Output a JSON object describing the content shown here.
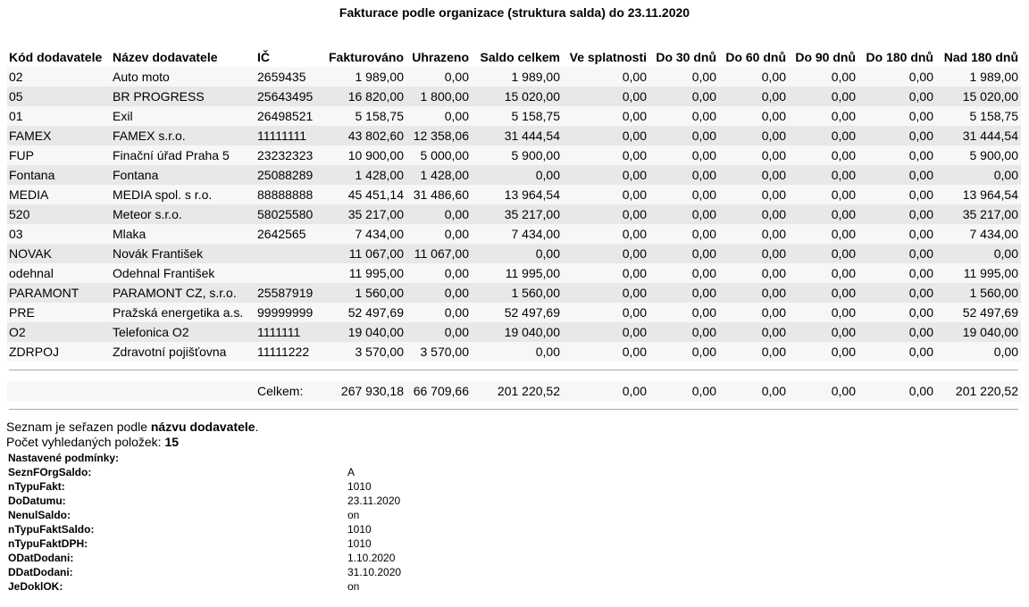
{
  "title": "Fakturace podle organizace (struktura salda) do 23.11.2020",
  "columns": [
    "Kód dodavatele",
    "Název dodavatele",
    "IČ",
    "Fakturováno",
    "Uhrazeno",
    "Saldo celkem",
    "Ve splatnosti",
    "Do 30 dnů",
    "Do 60 dnů",
    "Do 90 dnů",
    "Do 180 dnů",
    "Nad 180 dnů"
  ],
  "rows": [
    [
      "02",
      "Auto moto",
      "2659435",
      "1 989,00",
      "0,00",
      "1 989,00",
      "0,00",
      "0,00",
      "0,00",
      "0,00",
      "0,00",
      "1 989,00"
    ],
    [
      "05",
      "BR PROGRESS",
      "25643495",
      "16 820,00",
      "1 800,00",
      "15 020,00",
      "0,00",
      "0,00",
      "0,00",
      "0,00",
      "0,00",
      "15 020,00"
    ],
    [
      "01",
      "Exil",
      "26498521",
      "5 158,75",
      "0,00",
      "5 158,75",
      "0,00",
      "0,00",
      "0,00",
      "0,00",
      "0,00",
      "5 158,75"
    ],
    [
      "FAMEX",
      "FAMEX s.r.o.",
      "11111111",
      "43 802,60",
      "12 358,06",
      "31 444,54",
      "0,00",
      "0,00",
      "0,00",
      "0,00",
      "0,00",
      "31 444,54"
    ],
    [
      "FUP",
      "Finační úřad Praha 5",
      "23232323",
      "10 900,00",
      "5 000,00",
      "5 900,00",
      "0,00",
      "0,00",
      "0,00",
      "0,00",
      "0,00",
      "5 900,00"
    ],
    [
      "Fontana",
      "Fontana",
      "25088289",
      "1 428,00",
      "1 428,00",
      "0,00",
      "0,00",
      "0,00",
      "0,00",
      "0,00",
      "0,00",
      "0,00"
    ],
    [
      "MEDIA",
      "MEDIA spol. s r.o.",
      "88888888",
      "45 451,14",
      "31 486,60",
      "13 964,54",
      "0,00",
      "0,00",
      "0,00",
      "0,00",
      "0,00",
      "13 964,54"
    ],
    [
      "520",
      "Meteor s.r.o.",
      "58025580",
      "35 217,00",
      "0,00",
      "35 217,00",
      "0,00",
      "0,00",
      "0,00",
      "0,00",
      "0,00",
      "35 217,00"
    ],
    [
      "03",
      "Mlaka",
      "2642565",
      "7 434,00",
      "0,00",
      "7 434,00",
      "0,00",
      "0,00",
      "0,00",
      "0,00",
      "0,00",
      "7 434,00"
    ],
    [
      "NOVAK",
      "Novák František",
      "",
      "11 067,00",
      "11 067,00",
      "0,00",
      "0,00",
      "0,00",
      "0,00",
      "0,00",
      "0,00",
      "0,00"
    ],
    [
      "odehnal",
      "Odehnal František",
      "",
      "11 995,00",
      "0,00",
      "11 995,00",
      "0,00",
      "0,00",
      "0,00",
      "0,00",
      "0,00",
      "11 995,00"
    ],
    [
      "PARAMONT",
      "PARAMONT CZ, s.r.o.",
      "25587919",
      "1 560,00",
      "0,00",
      "1 560,00",
      "0,00",
      "0,00",
      "0,00",
      "0,00",
      "0,00",
      "1 560,00"
    ],
    [
      "PRE",
      "Pražská energetika a.s.",
      "99999999",
      "52 497,69",
      "0,00",
      "52 497,69",
      "0,00",
      "0,00",
      "0,00",
      "0,00",
      "0,00",
      "52 497,69"
    ],
    [
      "O2",
      "Telefonica O2",
      "1111111",
      "19 040,00",
      "0,00",
      "19 040,00",
      "0,00",
      "0,00",
      "0,00",
      "0,00",
      "0,00",
      "19 040,00"
    ],
    [
      "ZDRPOJ",
      "Zdravotní pojišťovna",
      "11111222",
      "3 570,00",
      "3 570,00",
      "0,00",
      "0,00",
      "0,00",
      "0,00",
      "0,00",
      "0,00",
      "0,00"
    ]
  ],
  "totals": {
    "label": "Celkem:",
    "values": [
      "267 930,18",
      "66 709,66",
      "201 220,52",
      "0,00",
      "0,00",
      "0,00",
      "0,00",
      "0,00",
      "201 220,52"
    ]
  },
  "notes": {
    "sort_prefix": "Seznam je seřazen podle ",
    "sort_field": "názvu dodavatele",
    "sort_suffix": ".",
    "count_label": "Počet vyhledaných položek: ",
    "count": "15"
  },
  "conditions": {
    "heading": "Nastavené podmínky:",
    "items": [
      {
        "key": "SeznFOrgSaldo:",
        "value": "A"
      },
      {
        "key": "nTypuFakt:",
        "value": "1010"
      },
      {
        "key": "DoDatumu:",
        "value": "23.11.2020"
      },
      {
        "key": "NenulSaldo:",
        "value": "on"
      },
      {
        "key": "nTypuFaktSaldo:",
        "value": "1010"
      },
      {
        "key": "nTypuFaktDPH:",
        "value": "1010"
      },
      {
        "key": "ODatDodani:",
        "value": "1.10.2020"
      },
      {
        "key": "DDatDodani:",
        "value": "31.10.2020"
      },
      {
        "key": "JeDoklOK:",
        "value": "on"
      }
    ]
  }
}
